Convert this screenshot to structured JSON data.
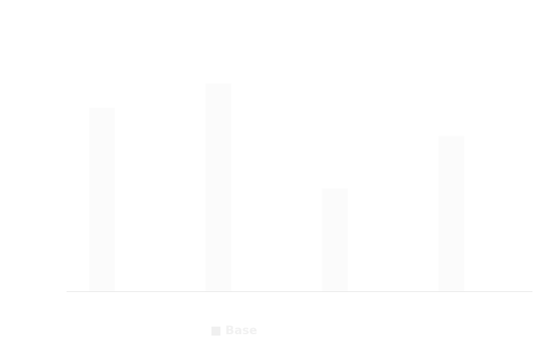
{
  "chart_data": {
    "type": "bar",
    "categories": [
      "",
      "",
      "",
      ""
    ],
    "series": [
      {
        "name": "Base",
        "values": [
          189,
          214,
          106,
          160
        ]
      }
    ],
    "ylim": [
      0,
      300
    ],
    "grid": false,
    "legend": "bottom",
    "colors": {
      "bar": "#fbfbfb",
      "axis": "#e6e6e6",
      "legend_swatch": "#f0f0f0"
    }
  },
  "legend": {
    "label": "Base"
  }
}
